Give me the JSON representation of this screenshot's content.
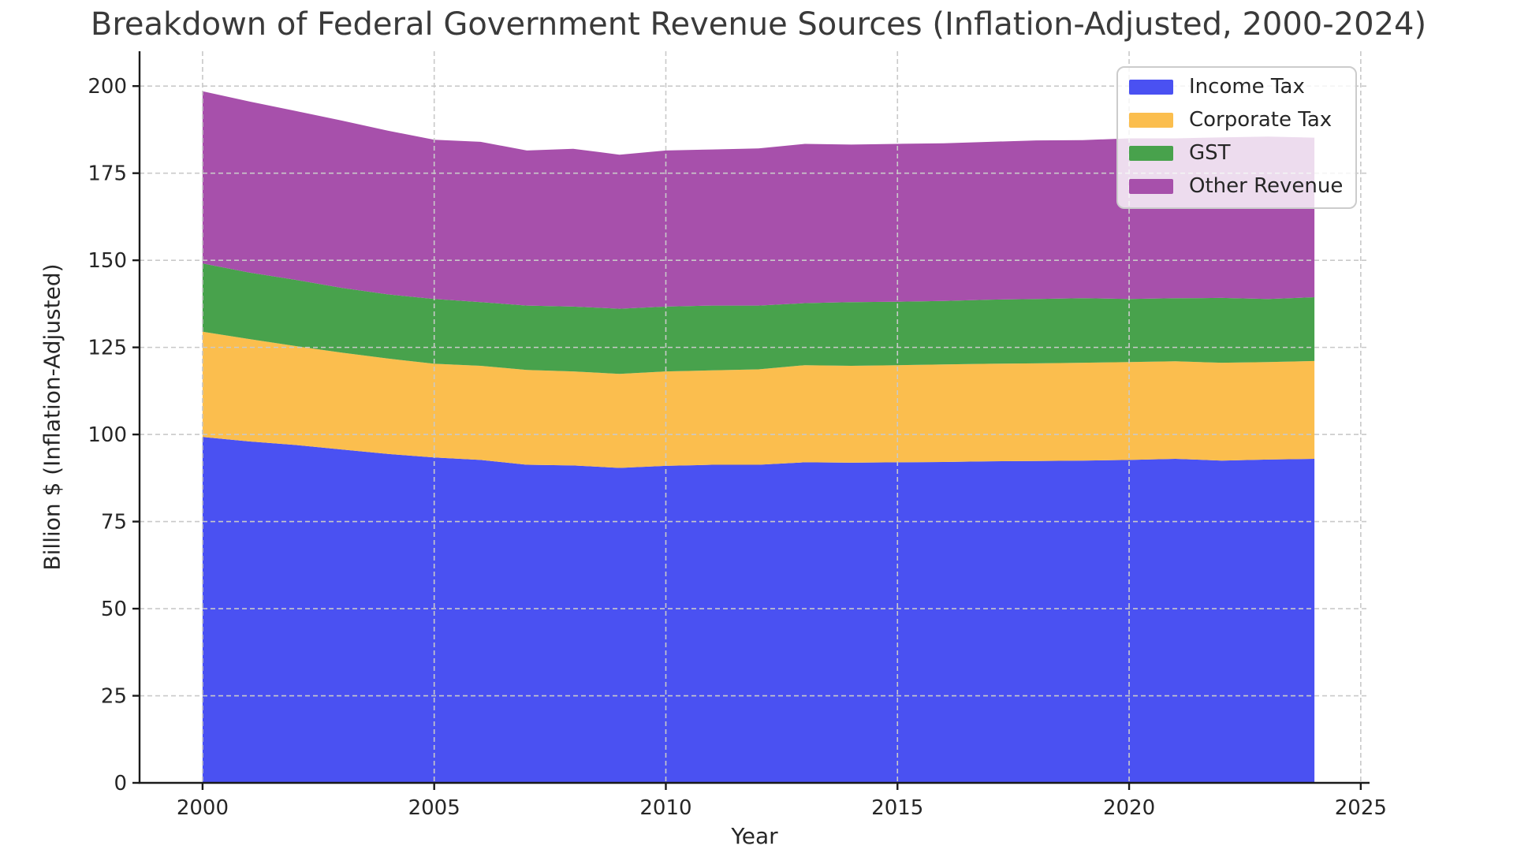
{
  "title": "Breakdown of Federal Government Revenue Sources (Inflation-Adjusted, 2000-2024)",
  "chart_data": {
    "type": "area",
    "stacked": true,
    "title": "Breakdown of Federal Government Revenue Sources (Inflation-Adjusted, 2000-2024)",
    "xlabel": "Year",
    "ylabel": "Billion $ (Inflation-Adjusted)",
    "x": [
      2000,
      2001,
      2002,
      2003,
      2004,
      2005,
      2006,
      2007,
      2008,
      2009,
      2010,
      2011,
      2012,
      2013,
      2014,
      2015,
      2016,
      2017,
      2018,
      2019,
      2020,
      2021,
      2022,
      2023,
      2024
    ],
    "series": [
      {
        "name": "Income Tax",
        "color": "#4a51f2",
        "values": [
          99.3,
          98.0,
          97.0,
          95.7,
          94.4,
          93.4,
          92.7,
          91.3,
          91.1,
          90.4,
          91.0,
          91.3,
          91.3,
          92.0,
          91.9,
          92.0,
          92.1,
          92.3,
          92.4,
          92.5,
          92.7,
          93.0,
          92.5,
          92.8,
          93.0
        ]
      },
      {
        "name": "Corporate Tax",
        "color": "#fbbe4e",
        "values": [
          30.2,
          29.4,
          28.4,
          27.8,
          27.4,
          26.9,
          27.0,
          27.2,
          27.0,
          27.0,
          27.1,
          27.1,
          27.4,
          27.9,
          27.8,
          27.9,
          28.0,
          28.0,
          28.0,
          28.1,
          28.1,
          28.0,
          28.1,
          28.0,
          28.1
        ]
      },
      {
        "name": "GST",
        "color": "#48a24c",
        "values": [
          19.6,
          19.1,
          19.0,
          18.6,
          18.4,
          18.6,
          18.3,
          18.5,
          18.6,
          18.7,
          18.6,
          18.6,
          18.3,
          17.8,
          18.3,
          18.2,
          18.2,
          18.4,
          18.5,
          18.5,
          18.1,
          18.1,
          18.6,
          18.1,
          18.3
        ]
      },
      {
        "name": "Other Revenue",
        "color": "#a750ab",
        "values": [
          49.4,
          49.1,
          48.5,
          48.0,
          47.0,
          45.7,
          46.0,
          44.5,
          45.3,
          44.2,
          44.8,
          44.8,
          45.1,
          45.7,
          45.2,
          45.3,
          45.3,
          45.3,
          45.5,
          45.4,
          46.1,
          45.9,
          46.1,
          46.6,
          45.8
        ]
      }
    ],
    "xticks": [
      2000,
      2005,
      2010,
      2015,
      2020,
      2025
    ],
    "yticks": [
      0,
      25,
      50,
      75,
      100,
      125,
      150,
      175,
      200
    ],
    "xlim": [
      1998.64,
      2025.19
    ],
    "ylim": [
      0,
      210
    ],
    "grid": true,
    "grid_over_areas": true,
    "legend_position": "upper right",
    "background": "#ffffff"
  }
}
